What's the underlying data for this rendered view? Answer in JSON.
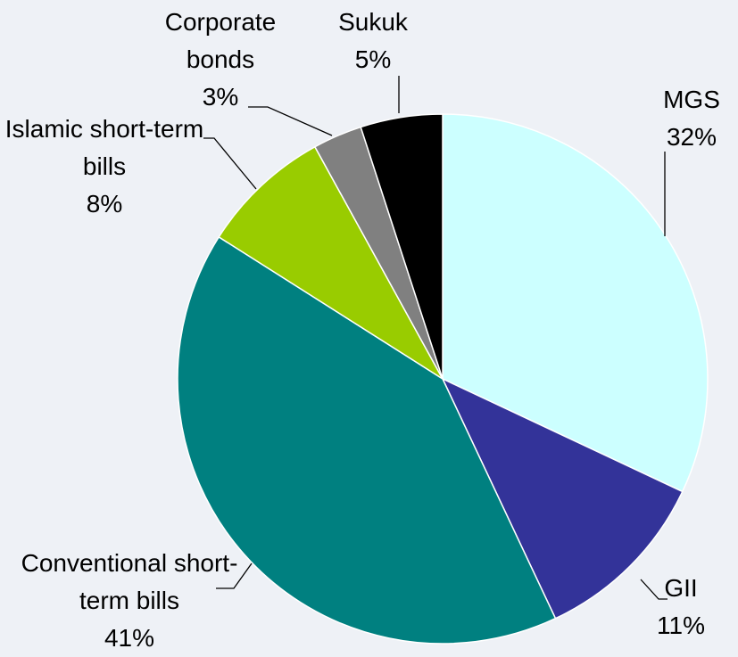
{
  "chart_data": {
    "type": "pie",
    "categories": [
      "MGS",
      "GII",
      "Conventional short-term bills",
      "Islamic short-term bills",
      "Corporate bonds",
      "Sukuk"
    ],
    "values": [
      32,
      11,
      41,
      8,
      3,
      5
    ],
    "value_labels": [
      "32%",
      "11%",
      "41%",
      "8%",
      "3%",
      "5%"
    ],
    "colors": [
      "#ccffff",
      "#333399",
      "#008080",
      "#99cc00",
      "#808080",
      "#000000"
    ]
  }
}
